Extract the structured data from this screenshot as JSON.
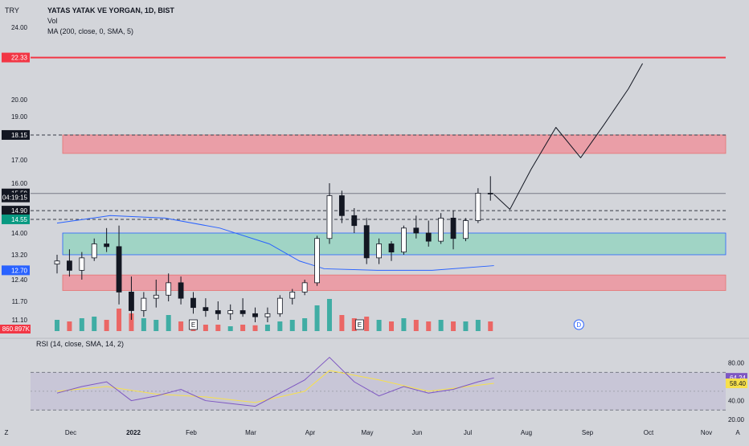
{
  "header": {
    "currency": "TRY",
    "symbol_title": "YATAS YATAK VE YORGAN, 1D, BIST",
    "vol_label": "Vol",
    "ma_label": "MA (200, close, 0, SMA, 5)",
    "rsi_label": "RSI (14, close, SMA, 14, 2)"
  },
  "main_axis": {
    "ticks": [
      "24.00",
      "20.00",
      "19.00",
      "17.00",
      "16.00",
      "14.00",
      "13.20",
      "12.40",
      "11.70",
      "11.10"
    ],
    "tick_values": [
      24.0,
      20.0,
      19.0,
      17.0,
      16.0,
      14.0,
      13.2,
      12.4,
      11.7,
      11.1
    ],
    "badges": [
      {
        "text": "22.33",
        "value": 22.33,
        "bg": "#f23645",
        "fg": "#ffffff"
      },
      {
        "text": "18.15",
        "value": 18.15,
        "bg": "#131722",
        "fg": "#ffffff"
      },
      {
        "text": "15.59",
        "value": 15.59,
        "bg": "#131722",
        "fg": "#ffffff"
      },
      {
        "text": "04:19:15",
        "value": 15.43,
        "bg": "#131722",
        "fg": "#ffffff"
      },
      {
        "text": "14.90",
        "value": 14.9,
        "bg": "#131722",
        "fg": "#ffffff"
      },
      {
        "text": "14.55",
        "value": 14.55,
        "bg": "#089981",
        "fg": "#ffffff"
      },
      {
        "text": "12.70",
        "value": 12.7,
        "bg": "#2962ff",
        "fg": "#ffffff"
      }
    ],
    "volume_badge": {
      "text": "860.897K",
      "bg": "#f23645",
      "fg": "#ffffff"
    }
  },
  "rsi_axis": {
    "ticks": [
      "80.00",
      "40.00",
      "20.00"
    ],
    "tick_values": [
      80,
      40,
      20
    ],
    "badges": [
      {
        "text": "64.24",
        "value": 64.24,
        "bg": "#7e57c2",
        "fg": "#ffffff"
      },
      {
        "text": "58.40",
        "value": 58.4,
        "bg": "#f7e04b",
        "fg": "#131722"
      }
    ]
  },
  "time_axis": {
    "labels": [
      "Z",
      "Dec",
      "2022",
      "Feb",
      "Mar",
      "Apr",
      "May",
      "Jun",
      "Jul",
      "Aug",
      "Sep",
      "Oct",
      "Nov",
      "A"
    ]
  },
  "events": [
    {
      "text": "E",
      "date": "2022-01-31"
    },
    {
      "text": "E",
      "date": "2022-05-05"
    },
    {
      "text": "D",
      "date": "2022-09-06"
    }
  ],
  "colors": {
    "background": "#d3d5da",
    "candle": "#131722",
    "candle_up": "#ffffff",
    "volume_up": "#26a69a",
    "volume_down": "#ef5350",
    "ma_line": "#2962ff",
    "rsi_line": "#7e57c2",
    "rsi_ma": "#f7e04b",
    "red_zone": "#f28b96",
    "green_zone": "#8fd3be",
    "resistance": "#f23645"
  },
  "chart_data": {
    "type": "candlestick",
    "price_range": [
      11.0,
      24.4
    ],
    "levels": [
      {
        "name": "resistance",
        "value": 22.33
      },
      {
        "name": "dashed",
        "value": 18.15
      },
      {
        "name": "last",
        "value": 15.59
      },
      {
        "name": "dashed",
        "value": 14.9
      },
      {
        "name": "dashed",
        "value": 14.55
      }
    ],
    "zones": [
      {
        "from": 17.3,
        "to": 18.15,
        "kind": "red"
      },
      {
        "from": 13.2,
        "to": 14.0,
        "kind": "green"
      },
      {
        "from": 12.05,
        "to": 12.55,
        "kind": "red"
      }
    ],
    "candles": [
      {
        "date": "2021-11-15",
        "o": 12.9,
        "h": 13.2,
        "l": 12.6,
        "c": 13.0
      },
      {
        "date": "2021-11-22",
        "o": 13.0,
        "h": 13.4,
        "l": 12.5,
        "c": 12.7
      },
      {
        "date": "2021-11-29",
        "o": 12.7,
        "h": 13.3,
        "l": 12.4,
        "c": 13.1
      },
      {
        "date": "2021-12-06",
        "o": 13.1,
        "h": 13.8,
        "l": 13.0,
        "c": 13.6
      },
      {
        "date": "2021-12-13",
        "o": 13.6,
        "h": 14.2,
        "l": 13.3,
        "c": 13.5
      },
      {
        "date": "2021-12-20",
        "o": 13.5,
        "h": 14.3,
        "l": 11.6,
        "c": 12.0
      },
      {
        "date": "2021-12-27",
        "o": 12.0,
        "h": 12.5,
        "l": 11.1,
        "c": 11.4
      },
      {
        "date": "2022-01-03",
        "o": 11.4,
        "h": 12.0,
        "l": 11.2,
        "c": 11.8
      },
      {
        "date": "2022-01-10",
        "o": 11.8,
        "h": 12.4,
        "l": 11.5,
        "c": 11.9
      },
      {
        "date": "2022-01-17",
        "o": 11.9,
        "h": 12.6,
        "l": 11.7,
        "c": 12.3
      },
      {
        "date": "2022-01-24",
        "o": 12.3,
        "h": 12.5,
        "l": 11.6,
        "c": 11.8
      },
      {
        "date": "2022-01-31",
        "o": 11.8,
        "h": 12.0,
        "l": 11.3,
        "c": 11.5
      },
      {
        "date": "2022-02-07",
        "o": 11.5,
        "h": 11.8,
        "l": 11.2,
        "c": 11.4
      },
      {
        "date": "2022-02-14",
        "o": 11.4,
        "h": 11.7,
        "l": 11.1,
        "c": 11.3
      },
      {
        "date": "2022-02-21",
        "o": 11.3,
        "h": 11.6,
        "l": 11.1,
        "c": 11.4
      },
      {
        "date": "2022-02-28",
        "o": 11.4,
        "h": 11.8,
        "l": 11.2,
        "c": 11.3
      },
      {
        "date": "2022-03-07",
        "o": 11.3,
        "h": 11.5,
        "l": 11.0,
        "c": 11.2
      },
      {
        "date": "2022-03-14",
        "o": 11.2,
        "h": 11.5,
        "l": 11.0,
        "c": 11.3
      },
      {
        "date": "2022-03-21",
        "o": 11.3,
        "h": 11.9,
        "l": 11.2,
        "c": 11.8
      },
      {
        "date": "2022-03-28",
        "o": 11.8,
        "h": 12.1,
        "l": 11.6,
        "c": 12.0
      },
      {
        "date": "2022-04-04",
        "o": 12.0,
        "h": 12.4,
        "l": 11.9,
        "c": 12.3
      },
      {
        "date": "2022-04-11",
        "o": 12.3,
        "h": 13.9,
        "l": 12.2,
        "c": 13.8
      },
      {
        "date": "2022-04-18",
        "o": 13.8,
        "h": 16.0,
        "l": 13.6,
        "c": 15.5
      },
      {
        "date": "2022-04-25",
        "o": 15.5,
        "h": 15.7,
        "l": 14.4,
        "c": 14.7
      },
      {
        "date": "2022-05-02",
        "o": 14.7,
        "h": 15.0,
        "l": 14.0,
        "c": 14.3
      },
      {
        "date": "2022-05-09",
        "o": 14.3,
        "h": 14.6,
        "l": 12.9,
        "c": 13.1
      },
      {
        "date": "2022-05-16",
        "o": 13.1,
        "h": 13.8,
        "l": 12.9,
        "c": 13.6
      },
      {
        "date": "2022-05-23",
        "o": 13.6,
        "h": 13.7,
        "l": 13.0,
        "c": 13.3
      },
      {
        "date": "2022-05-30",
        "o": 13.3,
        "h": 14.3,
        "l": 13.2,
        "c": 14.2
      },
      {
        "date": "2022-06-06",
        "o": 14.2,
        "h": 14.7,
        "l": 13.8,
        "c": 14.0
      },
      {
        "date": "2022-06-13",
        "o": 14.0,
        "h": 14.5,
        "l": 13.5,
        "c": 13.7
      },
      {
        "date": "2022-06-20",
        "o": 13.7,
        "h": 14.8,
        "l": 13.6,
        "c": 14.6
      },
      {
        "date": "2022-06-27",
        "o": 14.6,
        "h": 14.9,
        "l": 13.4,
        "c": 13.8
      },
      {
        "date": "2022-07-04",
        "o": 13.8,
        "h": 14.6,
        "l": 13.7,
        "c": 14.5
      },
      {
        "date": "2022-07-11",
        "o": 14.5,
        "h": 15.8,
        "l": 14.4,
        "c": 15.6
      },
      {
        "date": "2022-07-18",
        "o": 15.6,
        "h": 16.3,
        "l": 15.3,
        "c": 15.59
      }
    ],
    "volume": [
      {
        "date": "2021-11-15",
        "v": 0.35,
        "up": true
      },
      {
        "date": "2021-11-22",
        "v": 0.3,
        "up": false
      },
      {
        "date": "2021-11-29",
        "v": 0.4,
        "up": true
      },
      {
        "date": "2021-12-06",
        "v": 0.45,
        "up": true
      },
      {
        "date": "2021-12-13",
        "v": 0.35,
        "up": false
      },
      {
        "date": "2021-12-20",
        "v": 0.7,
        "up": false
      },
      {
        "date": "2021-12-27",
        "v": 0.55,
        "up": false
      },
      {
        "date": "2022-01-03",
        "v": 0.4,
        "up": true
      },
      {
        "date": "2022-01-10",
        "v": 0.35,
        "up": true
      },
      {
        "date": "2022-01-17",
        "v": 0.5,
        "up": true
      },
      {
        "date": "2022-01-24",
        "v": 0.3,
        "up": false
      },
      {
        "date": "2022-01-31",
        "v": 0.25,
        "up": false
      },
      {
        "date": "2022-02-07",
        "v": 0.2,
        "up": false
      },
      {
        "date": "2022-02-14",
        "v": 0.2,
        "up": false
      },
      {
        "date": "2022-02-21",
        "v": 0.15,
        "up": true
      },
      {
        "date": "2022-02-28",
        "v": 0.2,
        "up": false
      },
      {
        "date": "2022-03-07",
        "v": 0.18,
        "up": false
      },
      {
        "date": "2022-03-14",
        "v": 0.2,
        "up": true
      },
      {
        "date": "2022-03-21",
        "v": 0.3,
        "up": true
      },
      {
        "date": "2022-03-28",
        "v": 0.35,
        "up": true
      },
      {
        "date": "2022-04-04",
        "v": 0.4,
        "up": true
      },
      {
        "date": "2022-04-11",
        "v": 0.8,
        "up": true
      },
      {
        "date": "2022-04-18",
        "v": 1.0,
        "up": true
      },
      {
        "date": "2022-04-25",
        "v": 0.5,
        "up": false
      },
      {
        "date": "2022-05-02",
        "v": 0.4,
        "up": false
      },
      {
        "date": "2022-05-09",
        "v": 0.45,
        "up": false
      },
      {
        "date": "2022-05-16",
        "v": 0.35,
        "up": true
      },
      {
        "date": "2022-05-23",
        "v": 0.3,
        "up": false
      },
      {
        "date": "2022-05-30",
        "v": 0.4,
        "up": true
      },
      {
        "date": "2022-06-06",
        "v": 0.35,
        "up": false
      },
      {
        "date": "2022-06-13",
        "v": 0.3,
        "up": false
      },
      {
        "date": "2022-06-20",
        "v": 0.35,
        "up": true
      },
      {
        "date": "2022-06-27",
        "v": 0.3,
        "up": false
      },
      {
        "date": "2022-07-04",
        "v": 0.3,
        "up": true
      },
      {
        "date": "2022-07-11",
        "v": 0.35,
        "up": true
      },
      {
        "date": "2022-07-18",
        "v": 0.3,
        "up": false
      }
    ],
    "ma_200": [
      {
        "date": "2021-11-15",
        "value": 14.4
      },
      {
        "date": "2021-12-15",
        "value": 14.7
      },
      {
        "date": "2022-01-15",
        "value": 14.6
      },
      {
        "date": "2022-02-15",
        "value": 14.2
      },
      {
        "date": "2022-03-15",
        "value": 13.6
      },
      {
        "date": "2022-04-01",
        "value": 13.0
      },
      {
        "date": "2022-04-15",
        "value": 12.75
      },
      {
        "date": "2022-05-15",
        "value": 12.7
      },
      {
        "date": "2022-06-15",
        "value": 12.7
      },
      {
        "date": "2022-07-20",
        "value": 12.85
      }
    ],
    "projection": [
      {
        "date": "2022-07-20",
        "value": 15.55
      },
      {
        "date": "2022-07-29",
        "value": 14.95
      },
      {
        "date": "2022-08-10",
        "value": 16.6
      },
      {
        "date": "2022-08-24",
        "value": 18.5
      },
      {
        "date": "2022-09-07",
        "value": 17.1
      },
      {
        "date": "2022-09-20",
        "value": 18.6
      },
      {
        "date": "2022-10-04",
        "value": 20.6
      },
      {
        "date": "2022-10-12",
        "value": 22.0
      }
    ],
    "rsi": {
      "range": [
        20,
        90
      ],
      "bands": [
        70,
        30
      ],
      "series": [
        {
          "date": "2021-11-15",
          "value": 48
        },
        {
          "date": "2021-11-29",
          "value": 55
        },
        {
          "date": "2021-12-13",
          "value": 60
        },
        {
          "date": "2021-12-27",
          "value": 40
        },
        {
          "date": "2022-01-10",
          "value": 45
        },
        {
          "date": "2022-01-24",
          "value": 52
        },
        {
          "date": "2022-02-07",
          "value": 40
        },
        {
          "date": "2022-02-21",
          "value": 37
        },
        {
          "date": "2022-03-07",
          "value": 34
        },
        {
          "date": "2022-03-21",
          "value": 48
        },
        {
          "date": "2022-04-04",
          "value": 62
        },
        {
          "date": "2022-04-18",
          "value": 86
        },
        {
          "date": "2022-05-02",
          "value": 60
        },
        {
          "date": "2022-05-16",
          "value": 45
        },
        {
          "date": "2022-05-30",
          "value": 55
        },
        {
          "date": "2022-06-13",
          "value": 48
        },
        {
          "date": "2022-06-27",
          "value": 52
        },
        {
          "date": "2022-07-11",
          "value": 60
        },
        {
          "date": "2022-07-20",
          "value": 64.24
        }
      ],
      "ma": [
        {
          "date": "2021-11-15",
          "value": 50
        },
        {
          "date": "2021-12-13",
          "value": 55
        },
        {
          "date": "2022-01-10",
          "value": 47
        },
        {
          "date": "2022-02-07",
          "value": 44
        },
        {
          "date": "2022-03-07",
          "value": 38
        },
        {
          "date": "2022-04-04",
          "value": 50
        },
        {
          "date": "2022-04-18",
          "value": 72
        },
        {
          "date": "2022-05-16",
          "value": 62
        },
        {
          "date": "2022-06-13",
          "value": 50
        },
        {
          "date": "2022-07-20",
          "value": 58.4
        }
      ]
    }
  }
}
